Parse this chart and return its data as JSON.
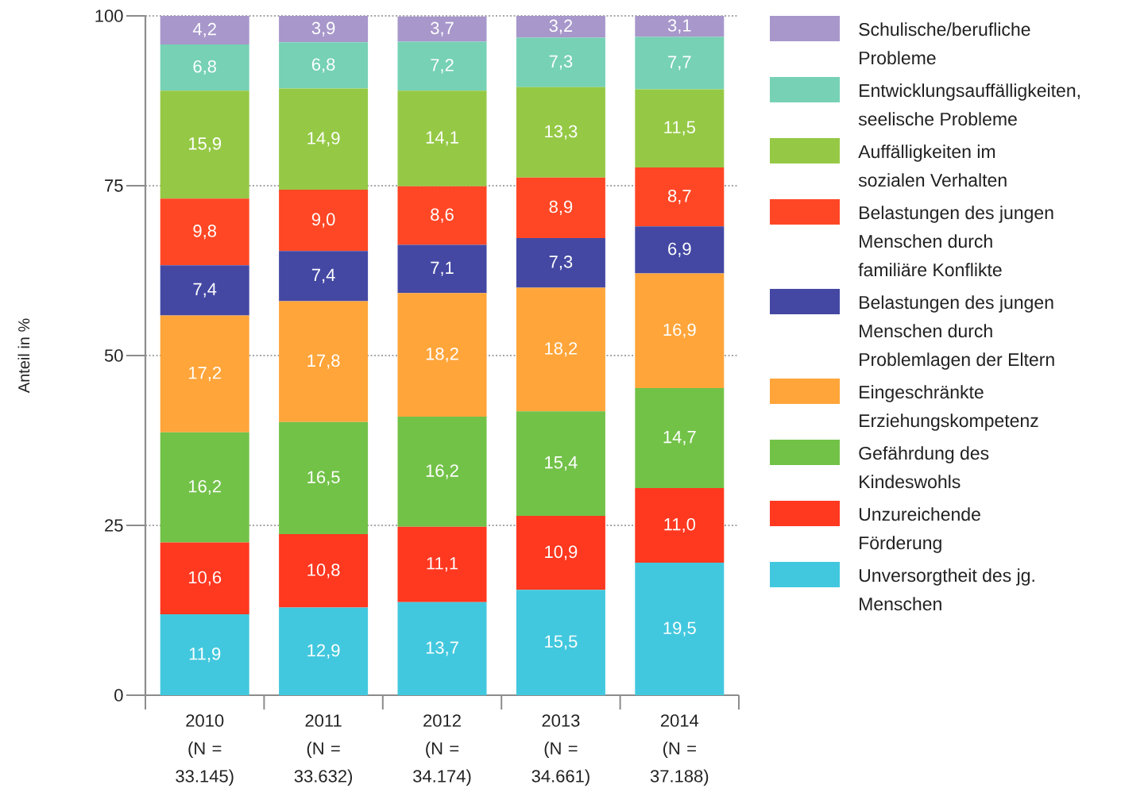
{
  "chart_data": {
    "type": "bar",
    "stacked": true,
    "ylabel": "Anteil in %",
    "categories": [
      "2010 (N = 33.145)",
      "2011 (N = 33.632)",
      "2012 (N = 34.174)",
      "2013 (N = 34.661)",
      "2014 (N = 37.188)"
    ],
    "series": [
      {
        "name": "Unversorgtheit des jg. Menschen",
        "color": "#42c8de",
        "values": [
          11.9,
          12.9,
          13.7,
          15.5,
          19.5
        ],
        "value_labels": [
          "11,9",
          "12,9",
          "13,7",
          "15,5",
          "19,5"
        ]
      },
      {
        "name": "Unzureichende Förderung",
        "color": "#ff3820",
        "values": [
          10.6,
          10.8,
          11.1,
          10.9,
          11.0
        ],
        "value_labels": [
          "10,6",
          "10,8",
          "11,1",
          "10,9",
          "11,0"
        ]
      },
      {
        "name": "Gefährdung des Kindeswohls",
        "color": "#72c248",
        "values": [
          16.2,
          16.5,
          16.2,
          15.4,
          14.7
        ],
        "value_labels": [
          "16,2",
          "16,5",
          "16,2",
          "15,4",
          "14,7"
        ]
      },
      {
        "name": "Eingeschränkte Erziehungskompetenz",
        "color": "#ffa53a",
        "values": [
          17.2,
          17.8,
          18.2,
          18.2,
          16.9
        ],
        "value_labels": [
          "17,2",
          "17,8",
          "18,2",
          "18,2",
          "16,9"
        ]
      },
      {
        "name": "Belastungen des jungen Menschen durch Problemlagen der Eltern",
        "color": "#4448a3",
        "values": [
          7.4,
          7.4,
          7.1,
          7.3,
          6.9
        ],
        "value_labels": [
          "7,4",
          "7,4",
          "7,1",
          "7,3",
          "6,9"
        ]
      },
      {
        "name": "Belastungen des jungen Menschen durch familiäre Konflikte",
        "color": "#ff4725",
        "values": [
          9.8,
          9.0,
          8.6,
          8.9,
          8.7
        ],
        "value_labels": [
          "9,8",
          "9,0",
          "8,6",
          "8,9",
          "8,7"
        ]
      },
      {
        "name": "Auffälligkeiten im sozialen Verhalten",
        "color": "#95c945",
        "values": [
          15.9,
          14.9,
          14.1,
          13.3,
          11.5
        ],
        "value_labels": [
          "15,9",
          "14,9",
          "14,1",
          "13,3",
          "11,5"
        ]
      },
      {
        "name": "Entwicklungsauffälligkeiten, seelische Probleme",
        "color": "#76d1b5",
        "values": [
          6.8,
          6.8,
          7.2,
          7.3,
          7.7
        ],
        "value_labels": [
          "6,8",
          "6,8",
          "7,2",
          "7,3",
          "7,7"
        ]
      },
      {
        "name": "Schulische/berufliche Probleme",
        "color": "#a797cb",
        "values": [
          4.2,
          3.9,
          3.7,
          3.2,
          3.1
        ],
        "value_labels": [
          "4,2",
          "3,9",
          "3,7",
          "3,2",
          "3,1"
        ]
      }
    ],
    "ylim": [
      0,
      100
    ],
    "yticks": [
      0,
      25,
      50,
      75,
      100
    ],
    "grid": "y",
    "legend": "right"
  }
}
